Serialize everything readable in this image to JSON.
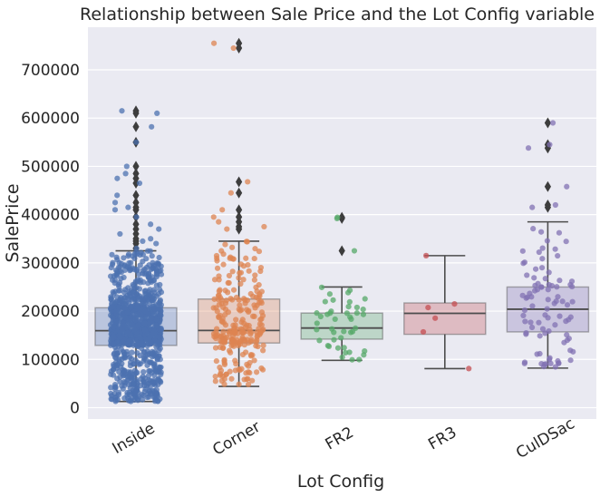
{
  "chart_data": {
    "type": "boxplot_strip",
    "title": "Relationship between Sale Price and the Lot Config variable",
    "xlabel": "Lot Config",
    "ylabel": "SalePrice",
    "categories": [
      "Inside",
      "Corner",
      "FR2",
      "FR3",
      "CulDSac"
    ],
    "ylim": [
      -25000,
      790000
    ],
    "yticks": [
      0,
      100000,
      200000,
      300000,
      400000,
      500000,
      600000,
      700000
    ],
    "ytick_labels": [
      "0",
      "100000",
      "200000",
      "300000",
      "400000",
      "500000",
      "600000",
      "700000"
    ],
    "grid": true,
    "colors": {
      "background": "#eaeaf2",
      "grid": "#ffffff",
      "box_edge": "#4d4d4d",
      "Inside": "#4c72b0",
      "Corner": "#dd8452",
      "FR2": "#55a868",
      "FR3": "#c44e52",
      "CulDSac": "#8172b3"
    },
    "boxes": [
      {
        "name": "Inside",
        "whislo": 12789,
        "q1": 129000,
        "med": 159500,
        "q3": 207000,
        "whishi": 325000,
        "fliers": [
          330000,
          340000,
          345000,
          350000,
          360000,
          370000,
          380000,
          395000,
          410000,
          415000,
          425000,
          440000,
          465000,
          475000,
          485000,
          500000,
          550000,
          582000,
          610000,
          615000
        ],
        "n_points": 1052
      },
      {
        "name": "Corner",
        "whislo": 44000,
        "q1": 134000,
        "med": 160000,
        "q3": 225000,
        "whishi": 345000,
        "fliers": [
          370000,
          375000,
          385000,
          395000,
          410000,
          445000,
          468000,
          745000,
          755000
        ],
        "n_points": 263
      },
      {
        "name": "FR2",
        "whislo": 98000,
        "q1": 142000,
        "med": 165000,
        "q3": 196000,
        "whishi": 250000,
        "fliers": [
          325000,
          392000,
          394500
        ],
        "n_points": 47
      },
      {
        "name": "FR3",
        "whislo": 81000,
        "q1": 152000,
        "med": 195450,
        "q3": 217000,
        "whishi": 315000,
        "fliers": [],
        "n_points": 4
      },
      {
        "name": "CulDSac",
        "whislo": 82000,
        "q1": 157000,
        "med": 204000,
        "q3": 250000,
        "whishi": 385000,
        "fliers": [
          415000,
          420000,
          458000,
          538000,
          545000,
          590000
        ],
        "n_points": 94
      }
    ]
  }
}
